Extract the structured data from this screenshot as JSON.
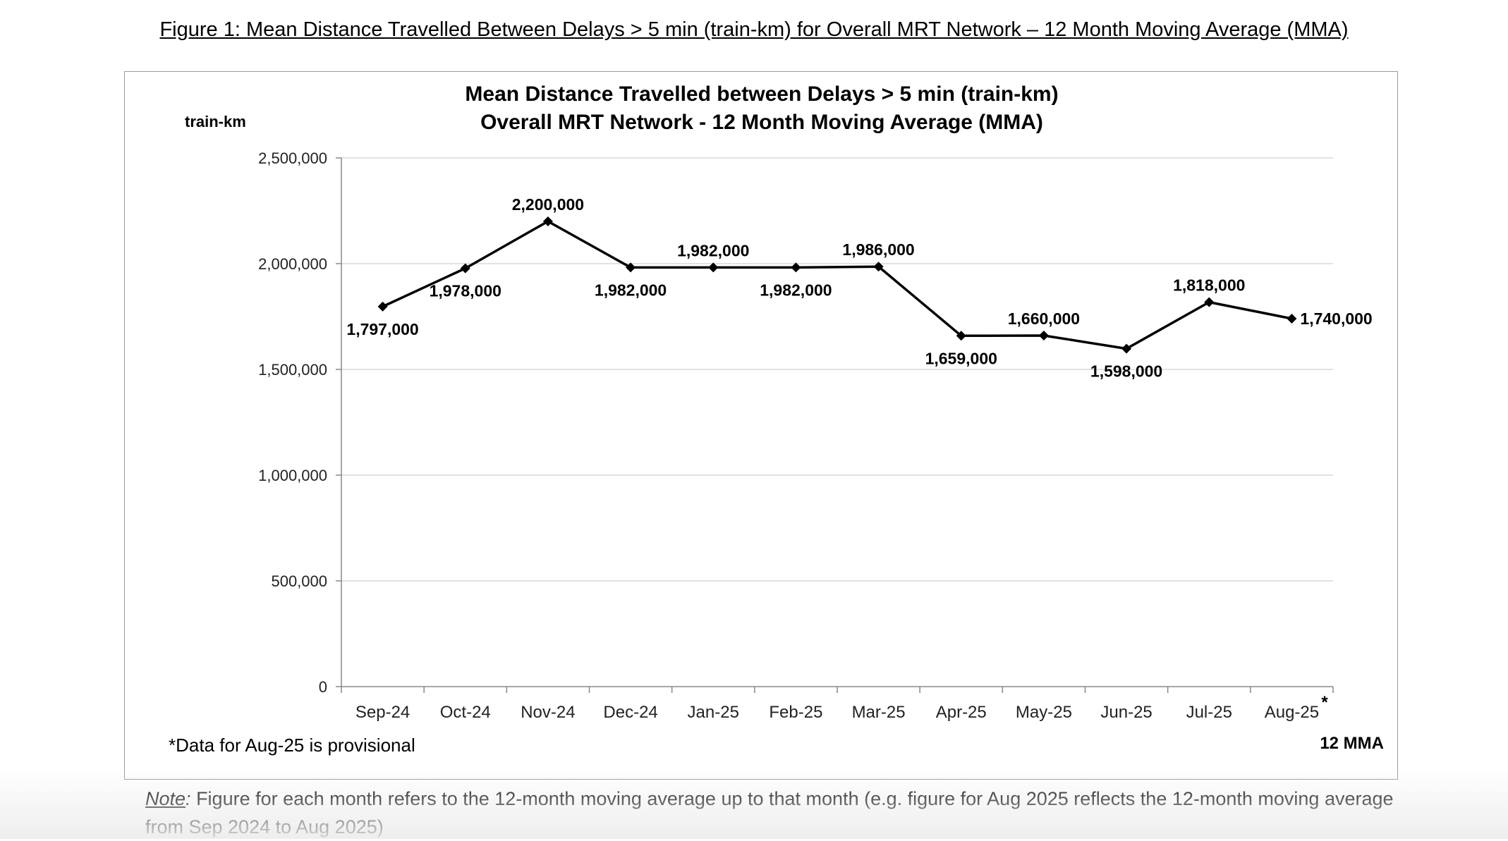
{
  "figure_caption": "Figure 1: Mean Distance Travelled Between Delays > 5 min (train-km) for Overall MRT Network – 12 Month Moving Average (MMA)",
  "chart_data": {
    "type": "line",
    "title_lines": [
      "Mean Distance Travelled between Delays > 5 min (train-km)",
      "Overall MRT Network - 12 Month Moving Average (MMA)"
    ],
    "ylabel": "train-km",
    "xlabel": "12 MMA",
    "categories": [
      "Sep-24",
      "Oct-24",
      "Nov-24",
      "Dec-24",
      "Jan-25",
      "Feb-25",
      "Mar-25",
      "Apr-25",
      "May-25",
      "Jun-25",
      "Jul-25",
      "Aug-25"
    ],
    "values": [
      1797000,
      1978000,
      2200000,
      1982000,
      1982000,
      1982000,
      1986000,
      1659000,
      1660000,
      1598000,
      1818000,
      1740000
    ],
    "data_labels": [
      "1,797,000",
      "1,978,000",
      "2,200,000",
      "1,982,000",
      "1,982,000",
      "1,982,000",
      "1,986,000",
      "1,659,000",
      "1,660,000",
      "1,598,000",
      "1,818,000",
      "1,740,000"
    ],
    "ylim": [
      0,
      2500000
    ],
    "yticks": [
      0,
      500000,
      1000000,
      1500000,
      2000000,
      2500000
    ],
    "ytick_labels": [
      "0",
      "500,000",
      "1,000,000",
      "1,500,000",
      "2,000,000",
      "2,500,000"
    ],
    "provisional_marker": "*",
    "footnote": "*Data for Aug-25 is provisional",
    "grid": true,
    "line_color": "#000000",
    "grid_color": "#d9d9d9"
  },
  "note": {
    "label": "Note",
    "colon": ":",
    "text": " Figure for each month refers to the 12-month moving average up to that month (e.g. figure for Aug 2025 reflects the 12-month moving average from Sep 2024 to Aug 2025)"
  }
}
